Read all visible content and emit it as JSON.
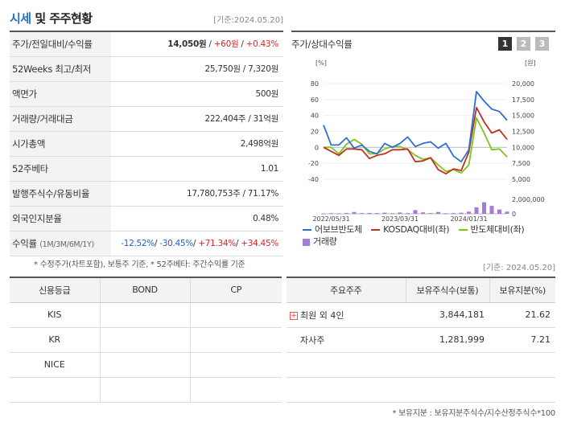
{
  "header": {
    "title_main": "시세",
    "title_rest": " 및 주주현황",
    "date_note": "[기준:2024.05.20]"
  },
  "price_table": [
    {
      "label": "주가/전일대비/수익률",
      "v1": "14,050원",
      "v2": "+60원",
      "v3": "+0.43%"
    },
    {
      "label": "52Weeks 최고/최저",
      "value": "25,750원 / 7,320원"
    },
    {
      "label": "액면가",
      "value": "500원"
    },
    {
      "label": "거래량/거래대금",
      "value": "222,404주 / 31억원"
    },
    {
      "label": "시가총액",
      "value": "2,498억원"
    },
    {
      "label": "52주베타",
      "value": "1.01"
    },
    {
      "label": "발행주식수/유동비율",
      "value": "17,780,753주 / 71.17%"
    },
    {
      "label": "외국인지분율",
      "value": "0.48%"
    },
    {
      "label": "수익률",
      "label_small": "(1M/3M/6M/1Y)",
      "r1": "-12.52%",
      "r2": "-30.45%",
      "r3": "+71.34%",
      "r4": "+34.45%"
    }
  ],
  "note1": "* 수정주가(차트포함), 보통주 기준, * 52주베타: 주간수익률 기준",
  "chart_panel": {
    "title": "주가/상대수익률",
    "tabs": [
      "1",
      "2",
      "3"
    ]
  },
  "chart_data": {
    "type": "line",
    "left_axis_unit": "[%]",
    "right_axis_unit": "[원]",
    "left_ticks": [
      80,
      60,
      40,
      20,
      0,
      -20,
      -40
    ],
    "right_ticks": [
      "20,000",
      "17,500",
      "15,000",
      "12,500",
      "10,000",
      "7,500",
      "5,000"
    ],
    "volume_tick": "2,000,000",
    "volume_zero": "0",
    "x_labels": [
      "2022/05/31",
      "2023/03/31",
      "2024/01/31"
    ],
    "x": [
      0,
      1,
      2,
      3,
      4,
      5,
      6,
      7,
      8,
      9,
      10,
      11,
      12,
      13,
      14,
      15,
      16,
      17,
      18,
      19,
      20,
      21,
      22,
      23,
      24
    ],
    "x_label_index": [
      1,
      10,
      19
    ],
    "series": [
      {
        "name": "어보브반도체",
        "color": "#2e6fd1",
        "values": [
          28,
          3,
          3,
          12,
          -1,
          3,
          -5,
          -8,
          5,
          0,
          5,
          13,
          1,
          5,
          7,
          -1,
          5,
          -11,
          -18,
          -3,
          70,
          58,
          48,
          45,
          34
        ]
      },
      {
        "name": "KOSDAQ대비(좌)",
        "color": "#c0321a",
        "values": [
          0,
          -5,
          -10,
          -2,
          -2,
          -3,
          -14,
          -10,
          -8,
          -3,
          -3,
          -2,
          -18,
          -17,
          -13,
          -28,
          -33,
          -27,
          -29,
          -6,
          50,
          32,
          18,
          22,
          10
        ]
      },
      {
        "name": "반도체대비(좌)",
        "color": "#7cc41f",
        "values": [
          0,
          0,
          -8,
          4,
          10,
          4,
          -8,
          -8,
          -2,
          1,
          1,
          -3,
          -10,
          -15,
          -13,
          -22,
          -30,
          -28,
          -32,
          -22,
          37,
          18,
          -3,
          -2,
          -12
        ]
      }
    ],
    "volume": {
      "name": "거래량",
      "color": "#a77ad6",
      "values": [
        0.05,
        0.08,
        0.06,
        0.12,
        0.25,
        0.1,
        0.12,
        0.1,
        0.16,
        0.07,
        0.18,
        0.1,
        0.52,
        0.2,
        0.1,
        0.25,
        0.08,
        0.1,
        0.15,
        0.3,
        0.9,
        1.6,
        1.1,
        0.6,
        0.3
      ]
    },
    "ylim_left": [
      -40,
      80
    ],
    "ylim_volume": [
      0,
      2000000
    ]
  },
  "legend": [
    {
      "label": "어보브반도체",
      "color": "#2e6fd1",
      "kind": "line"
    },
    {
      "label": "KOSDAQ대비(좌)",
      "color": "#c0321a",
      "kind": "line"
    },
    {
      "label": "반도체대비(좌)",
      "color": "#7cc41f",
      "kind": "line"
    },
    {
      "label": "거래량",
      "color": "#a77ad6",
      "kind": "box"
    }
  ],
  "date_note2": "[기준: 2024.05.20]",
  "credit": {
    "headers": [
      "신용등급",
      "BOND",
      "CP"
    ],
    "rows": [
      [
        "KIS",
        "",
        ""
      ],
      [
        "KR",
        "",
        ""
      ],
      [
        "NICE",
        "",
        ""
      ],
      [
        "",
        "",
        ""
      ]
    ]
  },
  "holders": {
    "headers": [
      "주요주주",
      "보유주식수(보통)",
      "보유지분(%)"
    ],
    "rows": [
      {
        "name": "최원 외 4인",
        "shares": "3,844,181",
        "pct": "21.62",
        "expandable": true
      },
      {
        "name": "자사주",
        "shares": "1,281,999",
        "pct": "7.21",
        "expandable": false
      },
      {
        "name": "",
        "shares": "",
        "pct": "",
        "expandable": false
      },
      {
        "name": "",
        "shares": "",
        "pct": "",
        "expandable": false
      }
    ]
  },
  "note2": "* 보유지분 : 보유지분주식수/지수산정주식수*100"
}
